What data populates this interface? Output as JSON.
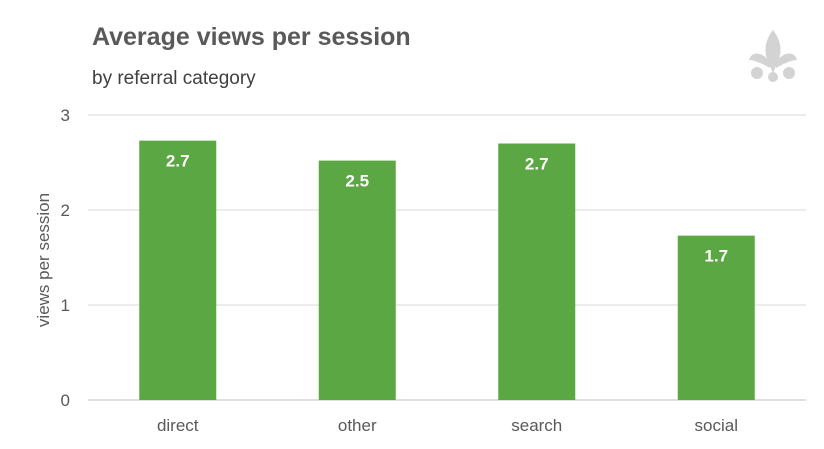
{
  "colors": {
    "bar": "#5ba744",
    "grid": "#d9d9d9",
    "axis": "#bfbfbf",
    "logo": "#d3d3d3"
  },
  "logo_icon": "leaf-logo-icon",
  "chart_data": {
    "type": "bar",
    "title": "Average views per session",
    "subtitle": "by referral category",
    "ylabel": "views per session",
    "xlabel": "",
    "categories": [
      "direct",
      "other",
      "search",
      "social"
    ],
    "values": [
      2.73,
      2.52,
      2.7,
      1.73
    ],
    "data_labels": [
      "2.7",
      "2.5",
      "2.7",
      "1.7"
    ],
    "ylim": [
      0,
      3
    ],
    "yticks": [
      0,
      1,
      2,
      3
    ],
    "grid": true,
    "legend": "none"
  }
}
